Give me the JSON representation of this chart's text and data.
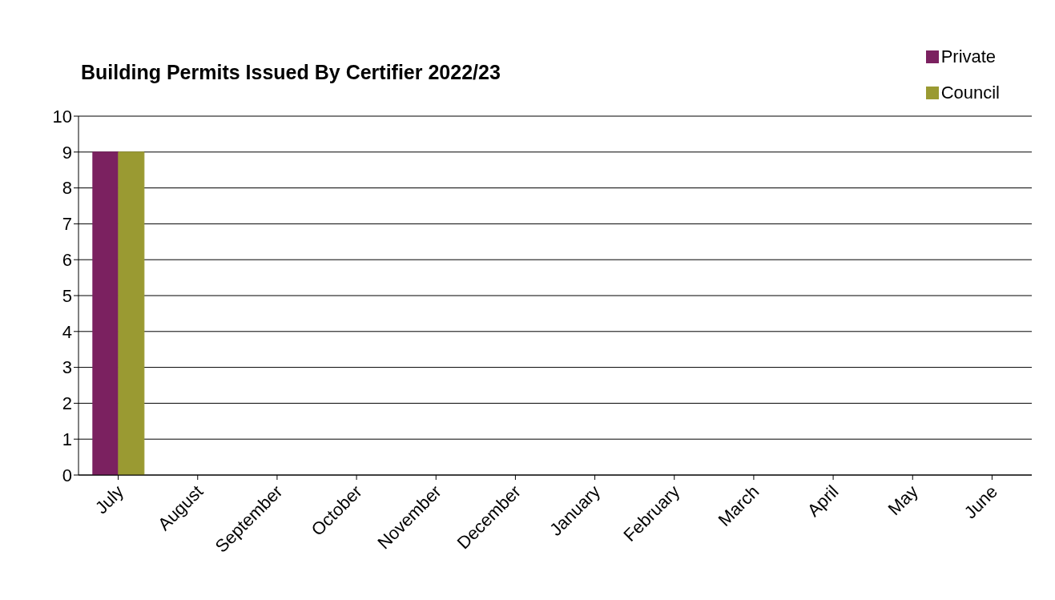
{
  "chart_data": {
    "type": "bar",
    "title": "Building Permits Issued By Certifier 2022/23",
    "categories": [
      "July",
      "August",
      "September",
      "October",
      "November",
      "December",
      "January",
      "February",
      "March",
      "April",
      "May",
      "June"
    ],
    "series": [
      {
        "name": "Private",
        "color": "#7b2160",
        "values": [
          9,
          null,
          null,
          null,
          null,
          null,
          null,
          null,
          null,
          null,
          null,
          null
        ]
      },
      {
        "name": "Council",
        "color": "#9a9a32",
        "values": [
          9,
          null,
          null,
          null,
          null,
          null,
          null,
          null,
          null,
          null,
          null,
          null
        ]
      }
    ],
    "ylim": [
      0,
      10
    ],
    "yticks": [
      0,
      1,
      2,
      3,
      4,
      5,
      6,
      7,
      8,
      9,
      10
    ],
    "grid": "y",
    "legend": "top right"
  }
}
